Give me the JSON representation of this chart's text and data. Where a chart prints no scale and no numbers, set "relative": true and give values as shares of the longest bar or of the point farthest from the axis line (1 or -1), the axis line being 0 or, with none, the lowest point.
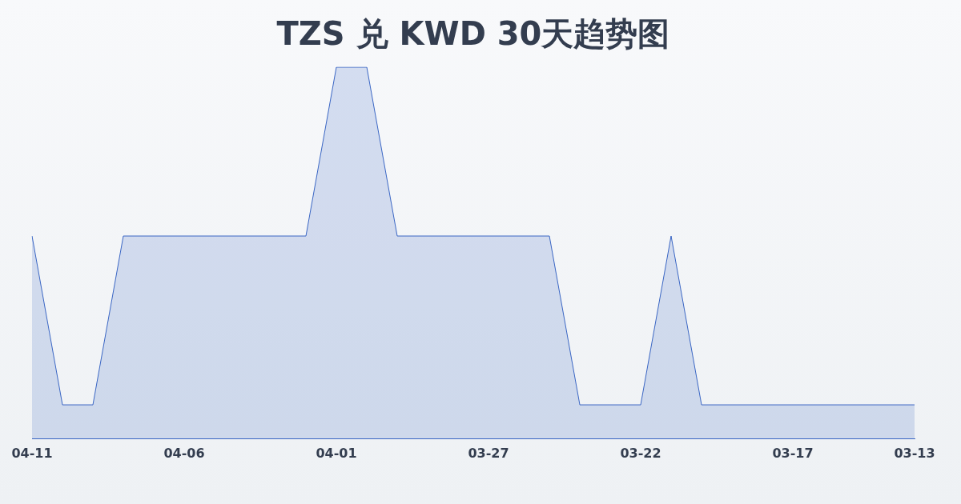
{
  "chart_data": {
    "type": "area",
    "title": "TZS 兑 KWD 30天趋势图",
    "relative": true,
    "categories": [
      "04-11",
      null,
      null,
      null,
      null,
      "04-06",
      null,
      null,
      null,
      null,
      "04-01",
      null,
      null,
      null,
      null,
      "03-27",
      null,
      null,
      null,
      null,
      "03-22",
      null,
      null,
      null,
      null,
      "03-17",
      null,
      null,
      null,
      "03-13"
    ],
    "series": [
      {
        "color": "#3a66c4",
        "values": [
          0.546,
          0.092,
          0.092,
          0.546,
          0.546,
          0.546,
          0.546,
          0.546,
          0.546,
          0.546,
          1,
          1,
          0.546,
          0.546,
          0.546,
          0.546,
          0.546,
          0.546,
          0.092,
          0.092,
          0.092,
          0.546,
          0.092,
          0.092,
          0.092,
          0.092,
          0.092,
          0.092,
          0.092,
          0.092
        ]
      }
    ],
    "legend": false,
    "marker": "none",
    "line_style": "solid"
  }
}
